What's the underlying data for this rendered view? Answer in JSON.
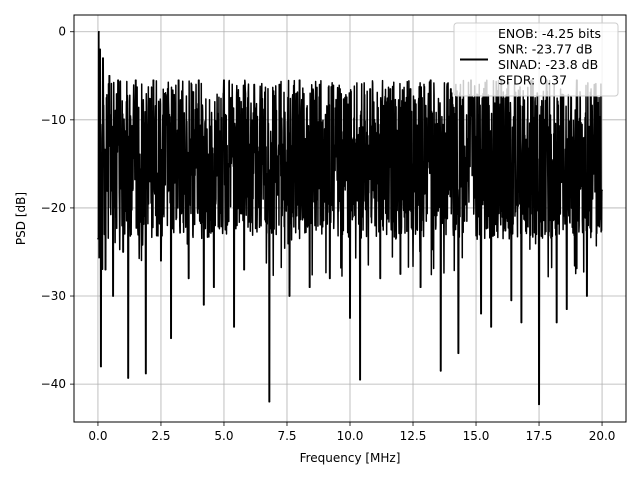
{
  "chart_data": {
    "type": "line",
    "xlabel": "Frequency [MHz]",
    "ylabel": "PSD [dB]",
    "xlim": [
      -0.95,
      20.95
    ],
    "ylim": [
      -44.3,
      1.9
    ],
    "xticks": [
      0.0,
      2.5,
      5.0,
      7.5,
      10.0,
      12.5,
      15.0,
      17.5,
      20.0
    ],
    "xtick_labels": [
      "0.0",
      "2.5",
      "5.0",
      "7.5",
      "10.0",
      "12.5",
      "15.0",
      "17.5",
      "20.0"
    ],
    "yticks": [
      0,
      -10,
      -20,
      -30,
      -40
    ],
    "ytick_labels": [
      "0",
      "−10",
      "−20",
      "−30",
      "−40"
    ],
    "grid": true,
    "line_color": "#000000",
    "legend": {
      "placement": "top-right",
      "entries": [
        "ENOB: -4.25 bits",
        "SNR: -23.77 dB",
        "SINAD: -23.8 dB",
        "SFDR: 0.37"
      ]
    },
    "series": [
      {
        "x": [
          0.0,
          0.04,
          0.08,
          0.12,
          0.2,
          0.3,
          0.45,
          0.6,
          0.8,
          1.0,
          1.2,
          1.5,
          1.9,
          2.2,
          2.5,
          2.9,
          3.2,
          3.6,
          4.0,
          4.2,
          4.6,
          5.0,
          5.4,
          5.8,
          6.2,
          6.8,
          7.2,
          7.6,
          8.0,
          8.4,
          8.8,
          9.2,
          9.6,
          10.0,
          10.4,
          10.8,
          11.2,
          11.6,
          12.0,
          12.4,
          12.8,
          13.2,
          13.6,
          14.0,
          14.3,
          14.8,
          15.2,
          15.6,
          16.0,
          16.4,
          16.8,
          17.2,
          17.5,
          17.8,
          18.2,
          18.6,
          19.0,
          19.4,
          19.7,
          20.0
        ],
        "y": [
          -23.5,
          0.0,
          -2.0,
          -38.0,
          -3.0,
          -27.0,
          -5.0,
          -30.0,
          -5.5,
          -25.0,
          -39.3,
          -5.5,
          -38.8,
          -5.5,
          -26.0,
          -34.8,
          -5.5,
          -28.0,
          -5.5,
          -31.0,
          -29.0,
          -5.5,
          -33.5,
          -27.0,
          -6.0,
          -42.0,
          -6.0,
          -30.0,
          -5.5,
          -29.0,
          -6.0,
          -28.0,
          -6.5,
          -32.5,
          -39.5,
          -6.5,
          -28.0,
          -6.5,
          -27.5,
          -6.5,
          -29.0,
          -5.5,
          -38.5,
          -6.5,
          -36.5,
          -5.5,
          -32.0,
          -33.5,
          -5.5,
          -30.5,
          -33.0,
          -5.5,
          -42.3,
          -5.5,
          -33.0,
          -31.5,
          -5.5,
          -30.0,
          -6.0,
          -18.0
        ]
      }
    ]
  }
}
